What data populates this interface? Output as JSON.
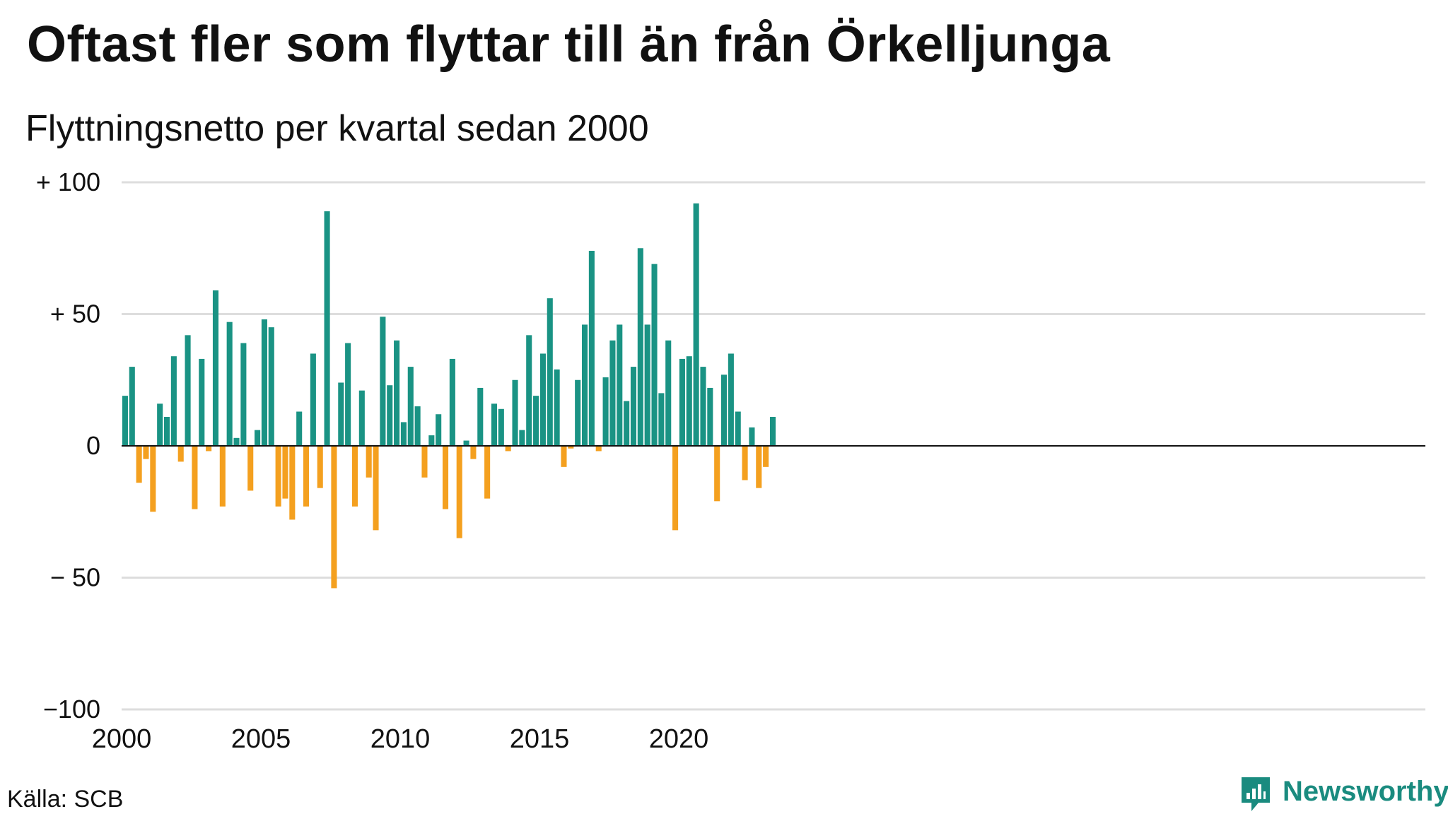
{
  "title": "Oftast fler som flyttar till än från Örkelljunga",
  "subtitle": "Flyttningsnetto per kvartal sedan 2000",
  "source": "Källa: SCB",
  "brand": "Newsworthy",
  "colors": {
    "positive": "#1a9384",
    "negative": "#f4a01f",
    "grid": "#dddddd",
    "axis": "#111111",
    "brand": "#1a8b7f"
  },
  "chart_data": {
    "type": "bar",
    "ylim": [
      -100,
      100
    ],
    "yticks": [
      {
        "value": 100,
        "label": "+ 100"
      },
      {
        "value": 50,
        "label": "+  50"
      },
      {
        "value": 0,
        "label": "0"
      },
      {
        "value": -50,
        "label": "− 50"
      },
      {
        "value": -100,
        "label": "−100"
      }
    ],
    "xticks": [
      {
        "year": 2000,
        "label": "2000"
      },
      {
        "year": 2005,
        "label": "2005"
      },
      {
        "year": 2010,
        "label": "2010"
      },
      {
        "year": 2015,
        "label": "2015"
      },
      {
        "year": 2020,
        "label": "2020"
      }
    ],
    "grid": true,
    "start_quarter": "2000 Q1",
    "series": [
      {
        "values": [
          19,
          30,
          -14,
          -5,
          -25,
          16,
          11,
          34,
          -6,
          42,
          -24,
          33,
          -2,
          59,
          -23,
          47,
          3,
          39,
          -17,
          6,
          48,
          45,
          -23,
          -20,
          -28,
          13,
          -23,
          35,
          -16,
          89,
          -54,
          24,
          39,
          -23,
          21,
          -12,
          -32,
          49,
          23,
          40,
          9,
          30,
          15,
          -12,
          4,
          12,
          -24,
          33,
          -35,
          2,
          -5,
          22,
          -20,
          16,
          14,
          -2,
          25,
          6,
          42,
          19,
          35,
          56,
          29,
          -8,
          -1,
          25,
          46,
          74,
          -2,
          26,
          40,
          46,
          17,
          30,
          75,
          46,
          69,
          20,
          40,
          -32,
          33,
          34,
          92,
          30,
          22,
          -21,
          27,
          35,
          13,
          -13,
          7,
          -16,
          -8,
          11
        ]
      }
    ]
  }
}
